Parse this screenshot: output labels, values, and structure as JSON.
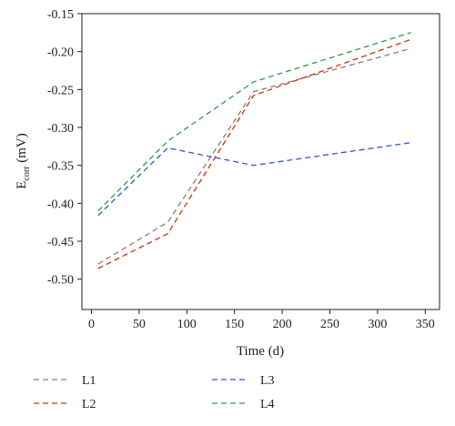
{
  "chart_data": {
    "type": "line",
    "xlabel": "Time (d)",
    "ylabel_main": "E",
    "ylabel_sub": "corr",
    "ylabel_unit": " (mV)",
    "xlim": [
      -10,
      365
    ],
    "ylim": [
      -0.54,
      -0.15
    ],
    "x_ticks": [
      0,
      50,
      100,
      150,
      200,
      250,
      300,
      350
    ],
    "y_ticks": [
      -0.15,
      -0.2,
      -0.25,
      -0.3,
      -0.35,
      -0.4,
      -0.45,
      -0.5
    ],
    "x_tick_labels": [
      "0",
      "50",
      "100",
      "150",
      "200",
      "250",
      "300",
      "350"
    ],
    "y_tick_labels": [
      "-0.15",
      "-0.20",
      "-0.25",
      "-0.30",
      "-0.35",
      "-0.40",
      "-0.45",
      "-0.50"
    ],
    "grid": false,
    "legend_position": "bottom",
    "series": [
      {
        "name": "L1",
        "color": "#808080",
        "x": [
          7,
          80,
          170,
          335
        ],
        "y": [
          -0.48,
          -0.425,
          -0.253,
          -0.196
        ]
      },
      {
        "name": "L2",
        "color": "#cc3300",
        "x": [
          7,
          80,
          170,
          335
        ],
        "y": [
          -0.486,
          -0.44,
          -0.258,
          -0.184
        ]
      },
      {
        "name": "L3",
        "color": "#3355cc",
        "x": [
          7,
          80,
          170,
          335
        ],
        "y": [
          -0.416,
          -0.327,
          -0.35,
          -0.32
        ]
      },
      {
        "name": "L4",
        "color": "#2e9a44",
        "x": [
          7,
          80,
          170,
          335
        ],
        "y": [
          -0.41,
          -0.318,
          -0.24,
          -0.175
        ]
      }
    ]
  }
}
